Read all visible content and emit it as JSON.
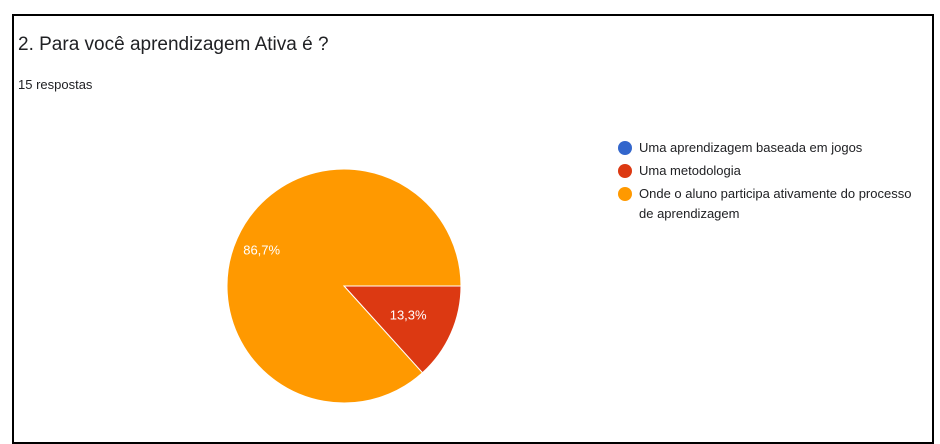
{
  "question": {
    "title": "2. Para você aprendizagem Ativa é ?",
    "responses": "15 respostas"
  },
  "chart_data": {
    "type": "pie",
    "title": "2. Para você aprendizagem Ativa é ?",
    "slices": [
      {
        "label": "Uma aprendizagem baseada em jogos",
        "value": 0,
        "percent_label": "",
        "color": "#3366cc"
      },
      {
        "label": "Uma metodologia",
        "value": 13.3,
        "percent_label": "13,3%",
        "color": "#dc3912"
      },
      {
        "label": "Onde o aluno participa ativamente do processo de aprendizagem",
        "value": 86.7,
        "percent_label": "86,7%",
        "color": "#ff9900"
      }
    ],
    "legend_position": "right"
  },
  "legend": {
    "items": [
      {
        "label": "Uma aprendizagem baseada em jogos",
        "color": "#3366cc"
      },
      {
        "label": "Uma metodologia",
        "color": "#dc3912"
      },
      {
        "label": "Onde o aluno participa ativamente do processo de aprendizagem",
        "color": "#ff9900"
      }
    ]
  }
}
